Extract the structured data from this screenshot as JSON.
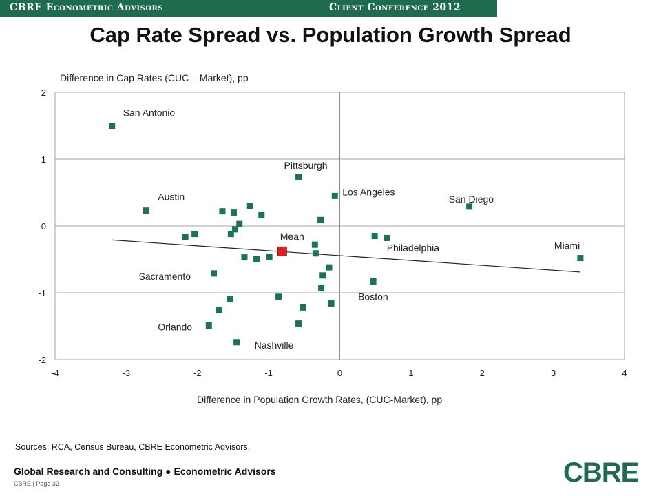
{
  "header": {
    "left": "CBRE Econometric Advisors",
    "right": "Client Conference 2012"
  },
  "page_title": "Cap Rate Spread vs. Population Growth Spread",
  "sources": "Sources: RCA, Census Bureau, CBRE Econometric Advisors.",
  "footer": {
    "line1": "Global Research and Consulting ● Econometric Advisors",
    "line2": "CBRE | Page 32"
  },
  "logo_text": "CBRE",
  "colors": {
    "header_bar": "#1f6b4e",
    "point": "#1b7356",
    "mean_point": "#e02020",
    "trendline": "#222222",
    "logo": "#1f6b4e"
  },
  "chart_data": {
    "type": "scatter",
    "ylabel": "Difference in Cap Rates (CUC – Market), pp",
    "xlabel": "Difference in Population Growth Rates, (CUC-Market), pp",
    "xlim": [
      -4,
      4
    ],
    "ylim": [
      -2,
      2
    ],
    "xticks": [
      "-4",
      "-3",
      "-2",
      "-1",
      "0",
      "1",
      "2",
      "3",
      "4"
    ],
    "yticks": [
      "2",
      "1",
      "0",
      "-1",
      "-2"
    ],
    "grid": "horizontal",
    "points": [
      {
        "x": -3.2,
        "y": 1.5,
        "label": "San Antonio"
      },
      {
        "x": -2.72,
        "y": 0.23,
        "label": "Austin"
      },
      {
        "x": -0.58,
        "y": 0.73,
        "label": "Pittsburgh"
      },
      {
        "x": -0.07,
        "y": 0.45,
        "label": "Los Angeles"
      },
      {
        "x": 1.82,
        "y": 0.29,
        "label": "San Diego"
      },
      {
        "x": 0.66,
        "y": -0.18,
        "label": "Philadelphia"
      },
      {
        "x": 3.38,
        "y": -0.48,
        "label": "Miami"
      },
      {
        "x": -1.77,
        "y": -0.71,
        "label": "Sacramento"
      },
      {
        "x": 0.47,
        "y": -0.83,
        "label": "Boston"
      },
      {
        "x": -1.84,
        "y": -1.49,
        "label": "Orlando"
      },
      {
        "x": -1.45,
        "y": -1.74,
        "label": "Nashville"
      },
      {
        "x": -1.65,
        "y": 0.22
      },
      {
        "x": -1.49,
        "y": 0.2
      },
      {
        "x": -1.26,
        "y": 0.3
      },
      {
        "x": -1.1,
        "y": 0.16
      },
      {
        "x": -0.27,
        "y": 0.09
      },
      {
        "x": -1.41,
        "y": 0.03
      },
      {
        "x": -1.47,
        "y": -0.05
      },
      {
        "x": -1.53,
        "y": -0.12
      },
      {
        "x": -2.04,
        "y": -0.12
      },
      {
        "x": -2.17,
        "y": -0.16
      },
      {
        "x": 0.49,
        "y": -0.15
      },
      {
        "x": -0.35,
        "y": -0.28
      },
      {
        "x": -0.34,
        "y": -0.41
      },
      {
        "x": -1.34,
        "y": -0.47
      },
      {
        "x": -1.17,
        "y": -0.5
      },
      {
        "x": -0.99,
        "y": -0.46
      },
      {
        "x": -0.15,
        "y": -0.62
      },
      {
        "x": -0.24,
        "y": -0.74
      },
      {
        "x": -0.26,
        "y": -0.93
      },
      {
        "x": -0.86,
        "y": -1.06
      },
      {
        "x": -1.54,
        "y": -1.09
      },
      {
        "x": -1.7,
        "y": -1.26
      },
      {
        "x": -0.52,
        "y": -1.22
      },
      {
        "x": -0.12,
        "y": -1.16
      },
      {
        "x": -0.58,
        "y": -1.46
      }
    ],
    "mean": {
      "x": -0.81,
      "y": -0.38,
      "label": "Mean"
    },
    "trendline": {
      "x": [
        -3.2,
        3.38
      ],
      "y": [
        -0.21,
        -0.69
      ]
    }
  }
}
